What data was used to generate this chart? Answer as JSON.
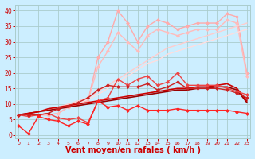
{
  "background_color": "#cceeff",
  "grid_color": "#aacccc",
  "xlabel": "Vent moyen/en rafales ( km/h )",
  "xlabel_color": "#cc0000",
  "xlabel_fontsize": 7,
  "tick_color": "#cc0000",
  "ylim": [
    -1,
    42
  ],
  "xlim": [
    -0.3,
    23.3
  ],
  "yticks": [
    0,
    5,
    10,
    15,
    20,
    25,
    30,
    35,
    40
  ],
  "xticks": [
    0,
    1,
    2,
    3,
    4,
    5,
    6,
    7,
    8,
    9,
    10,
    11,
    12,
    13,
    14,
    15,
    16,
    17,
    18,
    19,
    20,
    21,
    22,
    23
  ],
  "lines": [
    {
      "y": [
        6.5,
        6.5,
        6.5,
        6.5,
        7,
        9,
        10,
        11,
        25,
        30,
        40,
        36,
        30,
        35,
        37,
        36,
        34,
        35,
        36,
        36,
        36,
        39,
        38,
        20
      ],
      "color": "#ffaaaa",
      "linewidth": 1.0,
      "marker": "D",
      "markersize": 2.0,
      "zorder": 2
    },
    {
      "y": [
        6.5,
        6.5,
        6.5,
        6.5,
        7,
        9,
        10,
        11,
        22,
        27,
        33,
        30,
        27,
        32,
        34,
        33,
        32,
        33,
        34,
        34,
        34,
        37,
        36,
        19
      ],
      "color": "#ffbbbb",
      "linewidth": 1.0,
      "marker": "D",
      "markersize": 2.0,
      "zorder": 2
    },
    {
      "y": [
        6.5,
        7,
        7.5,
        8,
        9,
        10,
        11,
        12,
        14,
        16,
        18,
        20,
        22,
        24,
        26,
        28,
        29,
        30,
        31,
        32,
        33,
        34,
        35,
        36
      ],
      "color": "#ffcccc",
      "linewidth": 1.0,
      "marker": null,
      "markersize": 0,
      "zorder": 2
    },
    {
      "y": [
        6.5,
        7,
        7.5,
        8,
        9,
        9.5,
        10.5,
        11.5,
        13,
        15,
        17,
        19,
        21,
        23,
        24,
        26,
        27,
        28,
        29,
        30,
        31,
        32,
        33,
        34
      ],
      "color": "#ffdddd",
      "linewidth": 1.0,
      "marker": null,
      "markersize": 0,
      "zorder": 2
    },
    {
      "y": [
        6.5,
        6.0,
        6.5,
        7.0,
        5.5,
        5.0,
        5.5,
        4.0,
        11,
        12,
        18,
        16,
        18,
        19,
        16,
        17,
        20,
        16,
        16,
        16,
        16,
        15,
        14,
        13
      ],
      "color": "#ee4444",
      "linewidth": 1.0,
      "marker": "D",
      "markersize": 2.0,
      "zorder": 4
    },
    {
      "y": [
        3.0,
        0.5,
        6.0,
        5.0,
        4.5,
        3.0,
        4.5,
        3.5,
        11,
        9,
        9.5,
        8,
        9.5,
        8,
        8,
        8,
        8.5,
        8,
        8,
        8,
        8,
        8,
        7.5,
        7
      ],
      "color": "#ff2222",
      "linewidth": 1.0,
      "marker": "D",
      "markersize": 2.0,
      "zorder": 5
    },
    {
      "y": [
        6.5,
        7.0,
        7.5,
        8.0,
        8.5,
        9.0,
        9.5,
        10.0,
        10.5,
        11.0,
        11.5,
        12.0,
        12.5,
        13.0,
        13.5,
        14.0,
        14.5,
        14.5,
        15.0,
        15.0,
        15.5,
        15.5,
        14.5,
        10.5
      ],
      "color": "#990000",
      "linewidth": 1.2,
      "marker": null,
      "markersize": 0,
      "zorder": 3
    },
    {
      "y": [
        6.5,
        7.0,
        7.5,
        8.5,
        9.0,
        9.5,
        10.0,
        10.5,
        11.0,
        11.5,
        12.0,
        12.5,
        13.0,
        13.5,
        14.0,
        14.5,
        15.0,
        15.0,
        15.5,
        15.5,
        16.0,
        16.5,
        15.0,
        11.0
      ],
      "color": "#cc0000",
      "linewidth": 1.2,
      "marker": null,
      "markersize": 0,
      "zorder": 3
    },
    {
      "y": [
        6.5,
        6.5,
        6.5,
        7.0,
        8.5,
        9.5,
        10.5,
        12.0,
        14.5,
        16.0,
        15.5,
        15.5,
        15.5,
        16.5,
        14.5,
        15.5,
        17.0,
        15.0,
        15.0,
        15.0,
        15.0,
        14.5,
        13.5,
        12.0
      ],
      "color": "#cc2222",
      "linewidth": 1.0,
      "marker": "D",
      "markersize": 2.0,
      "zorder": 4
    }
  ]
}
